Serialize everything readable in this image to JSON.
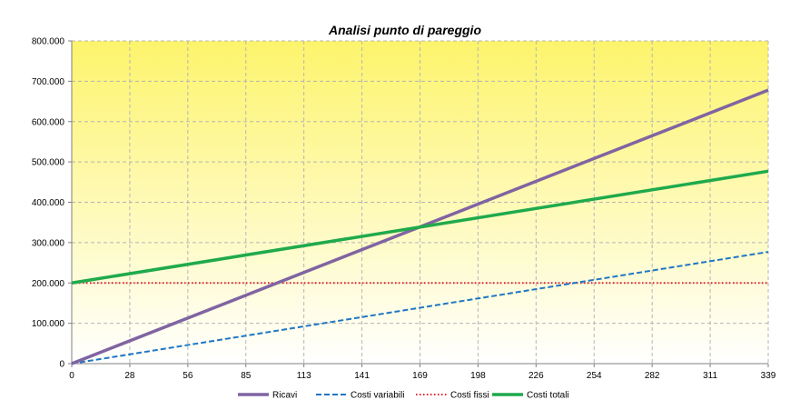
{
  "chart_data": {
    "type": "line",
    "title": "Analisi punto di pareggio",
    "xlabel": "",
    "ylabel": "",
    "x_ticks": [
      "0",
      "28",
      "56",
      "85",
      "113",
      "141",
      "169",
      "198",
      "226",
      "254",
      "282",
      "311",
      "339"
    ],
    "xlim": [
      0,
      339
    ],
    "y_ticks": [
      "0",
      "100.000",
      "200.000",
      "300.000",
      "400.000",
      "500.000",
      "600.000",
      "700.000",
      "800.000"
    ],
    "ylim": [
      0,
      800000
    ],
    "grid": true,
    "legend_position": "bottom",
    "background_gradient": [
      "#fdf46c",
      "#ffffff"
    ],
    "series": [
      {
        "name": "Ricavi",
        "color": "#8064a2",
        "style": "solid",
        "x": [
          0,
          339
        ],
        "y": [
          0,
          678000
        ]
      },
      {
        "name": "Costi variabili",
        "color": "#1f77c4",
        "style": "dashed",
        "x": [
          0,
          339
        ],
        "y": [
          0,
          277000
        ]
      },
      {
        "name": "Costi fissi",
        "color": "#e8222a",
        "style": "dotted",
        "x": [
          0,
          339
        ],
        "y": [
          200000,
          200000
        ]
      },
      {
        "name": "Costi totali",
        "color": "#1faa4c",
        "style": "solid",
        "x": [
          0,
          339
        ],
        "y": [
          200000,
          477000
        ]
      }
    ]
  }
}
